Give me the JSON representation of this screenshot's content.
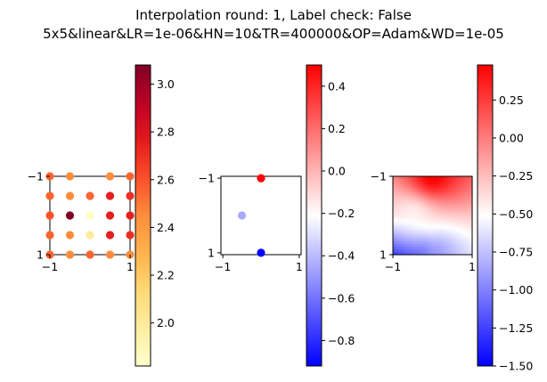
{
  "title_line1": "Interpolation round: 1, Label check: False",
  "title_line2": "5x5&linear&LR=1e-06&HN=10&TR=400000&OP=Adam&WD=1e-05",
  "chart_data": [
    {
      "type": "scatter",
      "xlim": [
        -1,
        1
      ],
      "ylim": [
        -1,
        1
      ],
      "xticks": [
        "−1",
        "1"
      ],
      "yticks": [
        "−1",
        "1"
      ],
      "colormap": "YlOrRd",
      "colorbar": {
        "min": 1.82,
        "max": 3.08,
        "ticks": [
          2.0,
          2.2,
          2.4,
          2.6,
          2.8,
          3.0
        ],
        "tick_labels": [
          "2.0",
          "2.2",
          "2.4",
          "2.6",
          "2.8",
          "3.0"
        ]
      },
      "points": [
        {
          "x": -1,
          "y": 1,
          "v": 2.55
        },
        {
          "x": -0.5,
          "y": 1,
          "v": 2.45
        },
        {
          "x": 0.5,
          "y": 1,
          "v": 2.45
        },
        {
          "x": 1,
          "y": 1,
          "v": 2.55
        },
        {
          "x": -1,
          "y": 0.5,
          "v": 2.55
        },
        {
          "x": -0.5,
          "y": 0.5,
          "v": 2.45
        },
        {
          "x": 0,
          "y": 0.5,
          "v": 2.55
        },
        {
          "x": 0.5,
          "y": 0.5,
          "v": 2.75
        },
        {
          "x": 1,
          "y": 0.5,
          "v": 2.7
        },
        {
          "x": -1,
          "y": 0,
          "v": 2.6
        },
        {
          "x": -0.5,
          "y": 0,
          "v": 3.08
        },
        {
          "x": 0,
          "y": 0,
          "v": 1.85
        },
        {
          "x": 0.5,
          "y": 0,
          "v": 2.75
        },
        {
          "x": 1,
          "y": 0,
          "v": 2.75
        },
        {
          "x": -1,
          "y": -0.5,
          "v": 2.55
        },
        {
          "x": -0.5,
          "y": -0.5,
          "v": 2.45
        },
        {
          "x": 0,
          "y": -0.5,
          "v": 2.0
        },
        {
          "x": 0.5,
          "y": -0.5,
          "v": 2.75
        },
        {
          "x": 1,
          "y": -0.5,
          "v": 2.7
        },
        {
          "x": -1,
          "y": -1,
          "v": 2.55
        },
        {
          "x": -0.5,
          "y": -1,
          "v": 2.45
        },
        {
          "x": 0,
          "y": -1,
          "v": 2.55
        },
        {
          "x": 0.5,
          "y": -1,
          "v": 2.45
        },
        {
          "x": 1,
          "y": -1,
          "v": 2.45
        }
      ]
    },
    {
      "type": "scatter",
      "xlim": [
        -1.05,
        1.05
      ],
      "ylim": [
        -1.05,
        1.05
      ],
      "xticks": [
        "−1",
        "1"
      ],
      "yticks": [
        "−1",
        "1"
      ],
      "colormap": "bwr",
      "colorbar": {
        "min": -0.92,
        "max": 0.5,
        "ticks": [
          -0.8,
          -0.6,
          -0.4,
          -0.2,
          0.0,
          0.2,
          0.4
        ],
        "tick_labels": [
          "−0.8",
          "−0.6",
          "−0.4",
          "−0.2",
          "0.0",
          "0.2",
          "0.4"
        ]
      },
      "points": [
        {
          "x": 0,
          "y": 1,
          "v": 0.5
        },
        {
          "x": -0.5,
          "y": 0,
          "v": -0.45
        },
        {
          "x": 0,
          "y": -1,
          "v": -0.92
        }
      ]
    },
    {
      "type": "heatmap",
      "xlim": [
        -1,
        1
      ],
      "ylim": [
        -1,
        1
      ],
      "xticks": [
        "−1",
        "1"
      ],
      "yticks": [
        "−1",
        "1"
      ],
      "colormap": "bwr",
      "colorbar": {
        "min": -1.5,
        "max": 0.48,
        "ticks": [
          -1.5,
          -1.25,
          -1.0,
          -0.75,
          -0.5,
          -0.25,
          0.0,
          0.25
        ],
        "tick_labels": [
          "−1.50",
          "−1.25",
          "−1.00",
          "−0.75",
          "−0.50",
          "−0.25",
          "0.00",
          "0.25"
        ]
      },
      "interpolation_points": [
        {
          "x": 0,
          "y": 1,
          "v": 0.5
        },
        {
          "x": -0.5,
          "y": 0,
          "v": -0.45
        },
        {
          "x": 0,
          "y": -1,
          "v": -0.92
        }
      ]
    }
  ]
}
